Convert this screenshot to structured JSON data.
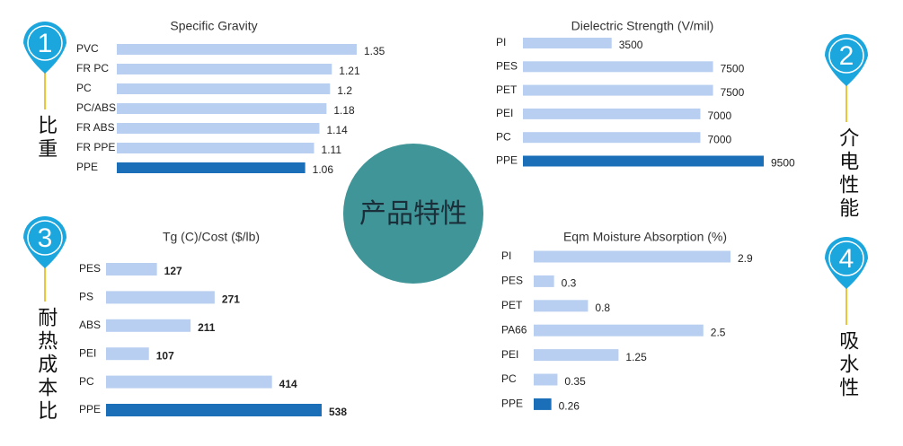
{
  "chart_data": [
    {
      "type": "bar",
      "orientation": "horizontal",
      "title": "Specific Gravity",
      "categories": [
        "PVC",
        "FR PC",
        "PC",
        "PC/ABS",
        "FR ABS",
        "FR PPE",
        "PPE"
      ],
      "values": [
        1.35,
        1.21,
        1.2,
        1.18,
        1.14,
        1.11,
        1.06
      ],
      "colors": [
        "#b9cff1",
        "#b9cff1",
        "#b9cff1",
        "#b9cff1",
        "#b9cff1",
        "#b9cff1",
        "#1a6fb8"
      ]
    },
    {
      "type": "bar",
      "orientation": "horizontal",
      "title": "Dielectric Strength (V/mil)",
      "categories": [
        "PI",
        "PES",
        "PET",
        "PEI",
        "PC",
        "PPE"
      ],
      "values": [
        3500,
        7500,
        7500,
        7000,
        7000,
        9500
      ],
      "colors": [
        "#b9cff1",
        "#b9cff1",
        "#b9cff1",
        "#b9cff1",
        "#b9cff1",
        "#1a6fb8"
      ]
    },
    {
      "type": "bar",
      "orientation": "horizontal",
      "title": "Tg (C)/Cost ($/lb)",
      "categories": [
        "PES",
        "PS",
        "ABS",
        "PEI",
        "PC",
        "PPE"
      ],
      "values": [
        127,
        271,
        211,
        107,
        414,
        538
      ],
      "colors": [
        "#b9cff1",
        "#b9cff1",
        "#b9cff1",
        "#b9cff1",
        "#b9cff1",
        "#1a6fb8"
      ]
    },
    {
      "type": "bar",
      "orientation": "horizontal",
      "title": "Eqm Moisture Absorption (%)",
      "categories": [
        "PI",
        "PES",
        "PET",
        "PA66",
        "PEI",
        "PC",
        "PPE"
      ],
      "values": [
        2.9,
        0.3,
        0.8,
        2.5,
        1.25,
        0.35,
        0.26
      ],
      "colors": [
        "#b9cff1",
        "#b9cff1",
        "#b9cff1",
        "#b9cff1",
        "#b9cff1",
        "#b9cff1",
        "#1a6fb8"
      ]
    }
  ],
  "badges": [
    {
      "number": 1,
      "label": "比重"
    },
    {
      "number": 2,
      "label": "介电性能"
    },
    {
      "number": 3,
      "label": "耐热成本比"
    },
    {
      "number": 4,
      "label": "吸水性"
    }
  ],
  "center_label": "产品特性"
}
